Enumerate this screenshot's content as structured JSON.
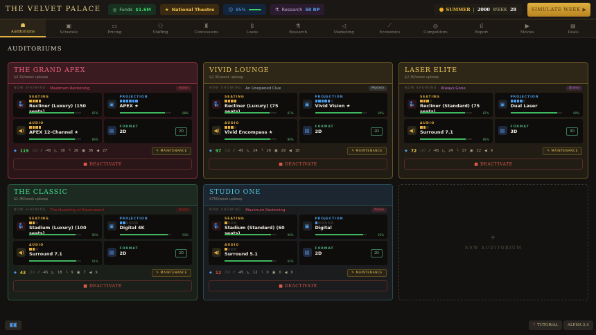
{
  "header": {
    "title": "THE VELVET PALACE",
    "funds_label": "Funds",
    "funds_value": "$1.6M",
    "reputation": "National Theatre",
    "satisfaction": "85%",
    "research_label": "Research",
    "research_value": "50 RP",
    "season": "SUMMER",
    "year": "2000",
    "week_label": "WEEK",
    "week": "28",
    "simulate_label": "SIMULATE WEEK ▶"
  },
  "nav": [
    {
      "label": "Auditoriums",
      "icon": "☗",
      "active": true
    },
    {
      "label": "Schedule",
      "icon": "▣"
    },
    {
      "label": "Pricing",
      "icon": "▭"
    },
    {
      "label": "Staffing",
      "icon": "⚇"
    },
    {
      "label": "Concessions",
      "icon": "♜"
    },
    {
      "label": "Loans",
      "icon": "$"
    },
    {
      "label": "Research",
      "icon": "⚗"
    },
    {
      "label": "Marketing",
      "icon": "◁"
    },
    {
      "label": "Economics",
      "icon": "⟋"
    },
    {
      "label": "Competitors",
      "icon": "◎"
    },
    {
      "label": "Report",
      "icon": "ıl"
    },
    {
      "label": "Movies",
      "icon": "▶"
    },
    {
      "label": "Deals",
      "icon": "▤"
    }
  ],
  "page_title": "AUDITORIUMS",
  "labels": {
    "now_showing": "NOW SHOWING",
    "seating": "SEATING",
    "projection": "PROJECTION",
    "audio": "AUDIO",
    "format": "FORMAT",
    "maintenance": "MAINTENANCE",
    "deactivate": "DEACTIVATE",
    "new_auditorium": "NEW AUDITORIUM"
  },
  "colors": {
    "red": "#e05070",
    "gold": "#e8c050",
    "green": "#30d080",
    "teal": "#40c0d8"
  },
  "auditoriums": [
    {
      "name": "THE GRAND APEX",
      "theme": "red",
      "upkeep": "$4.1K/week upkeep",
      "movie": "Maximum Reckoning",
      "genre": "Action",
      "movie_color": "#e8506a",
      "seating": {
        "name": "Recliner (Luxury) (150 seats)",
        "level": 4,
        "max": 4,
        "condition": "87%"
      },
      "projection": {
        "name": "APEX ★",
        "level": 6,
        "max": 6,
        "condition": "88%"
      },
      "audio": {
        "name": "APEX 12-Channel ★",
        "level": 4,
        "max": 4,
        "condition": "89%"
      },
      "format": "2D",
      "stats": {
        "score": "119",
        "score_unit": "/10",
        "score_color": "#40d060",
        "delta": "-45",
        "s1": "30",
        "s2": "26",
        "s3": "36",
        "s4": "27"
      }
    },
    {
      "name": "VIVID LOUNGE",
      "theme": "gold",
      "upkeep": "$2.3K/week upkeep",
      "movie": "An Unopened Clue",
      "genre": "Mystery",
      "movie_color": "#a8b8d0",
      "seating": {
        "name": "Recliner (Luxury) (75 seats)",
        "level": 4,
        "max": 4,
        "condition": "87%"
      },
      "projection": {
        "name": "Vivid Vision ★",
        "level": 5,
        "max": 6,
        "condition": "90%"
      },
      "audio": {
        "name": "Vivid Encompass ★",
        "level": 3,
        "max": 4,
        "condition": "89%"
      },
      "format": "2D",
      "stats": {
        "score": "97",
        "score_unit": "/10",
        "score_color": "#40d060",
        "delta": "-45",
        "s1": "24",
        "s2": "26",
        "s3": "29",
        "s4": "18"
      }
    },
    {
      "name": "LASER ELITE",
      "theme": "gold",
      "upkeep": "$2.3K/week upkeep",
      "movie": "Always Gone",
      "genre": "Drama",
      "movie_color": "#c070e0",
      "seating": {
        "name": "Recliner (Standard) (75 seats)",
        "level": 3,
        "max": 4,
        "condition": "87%"
      },
      "projection": {
        "name": "Dual Laser",
        "level": 4,
        "max": 5,
        "condition": "90%"
      },
      "audio": {
        "name": "Surround 7.1",
        "level": 2,
        "max": 3,
        "condition": "89%"
      },
      "format": "3D",
      "stats": {
        "score": "72",
        "score_unit": "/10",
        "score_color": "#e8d050",
        "delta": "-45",
        "s1": "24",
        "s2": "17",
        "s3": "22",
        "s4": "9"
      }
    },
    {
      "name": "THE CLASSIC",
      "theme": "green",
      "upkeep": "$1.4K/week upkeep",
      "movie": "The Haunting of Ravenwood",
      "genre": "Horror",
      "movie_color": "#c02020",
      "seating": {
        "name": "Stadium (Luxury) (100 seats)",
        "level": 2,
        "max": 3,
        "condition": "90%"
      },
      "projection": {
        "name": "Digital 4K",
        "level": 2,
        "max": 6,
        "condition": "93%"
      },
      "audio": {
        "name": "Surround 7.1",
        "level": 2,
        "max": 3,
        "condition": "91%"
      },
      "format": "2D",
      "stats": {
        "score": "43",
        "score_unit": "/10",
        "score_color": "#e8c040",
        "delta": "-45",
        "s1": "18",
        "s2": "9",
        "s3": "7",
        "s4": "9"
      }
    },
    {
      "name": "STUDIO ONE",
      "theme": "teal",
      "upkeep": "$750/week upkeep",
      "movie": "Maximum Reckoning",
      "genre": "Action",
      "movie_color": "#e8506a",
      "seating": {
        "name": "Stadium (Standard) (60 seats)",
        "level": 1,
        "max": 4,
        "condition": "90%"
      },
      "projection": {
        "name": "Digital",
        "level": 1,
        "max": 6,
        "condition": "93%"
      },
      "audio": {
        "name": "Surround 5.1",
        "level": 1,
        "max": 4,
        "condition": "93%"
      },
      "format": "2D",
      "stats": {
        "score": "12",
        "score_unit": "/10",
        "score_color": "#e05040",
        "delta": "-45",
        "s1": "12",
        "s2": "0",
        "s3": "0",
        "s4": "0"
      }
    }
  ],
  "footer": {
    "tutorial_label": "TUTORIAL",
    "version": "ALPHA 2.4"
  }
}
